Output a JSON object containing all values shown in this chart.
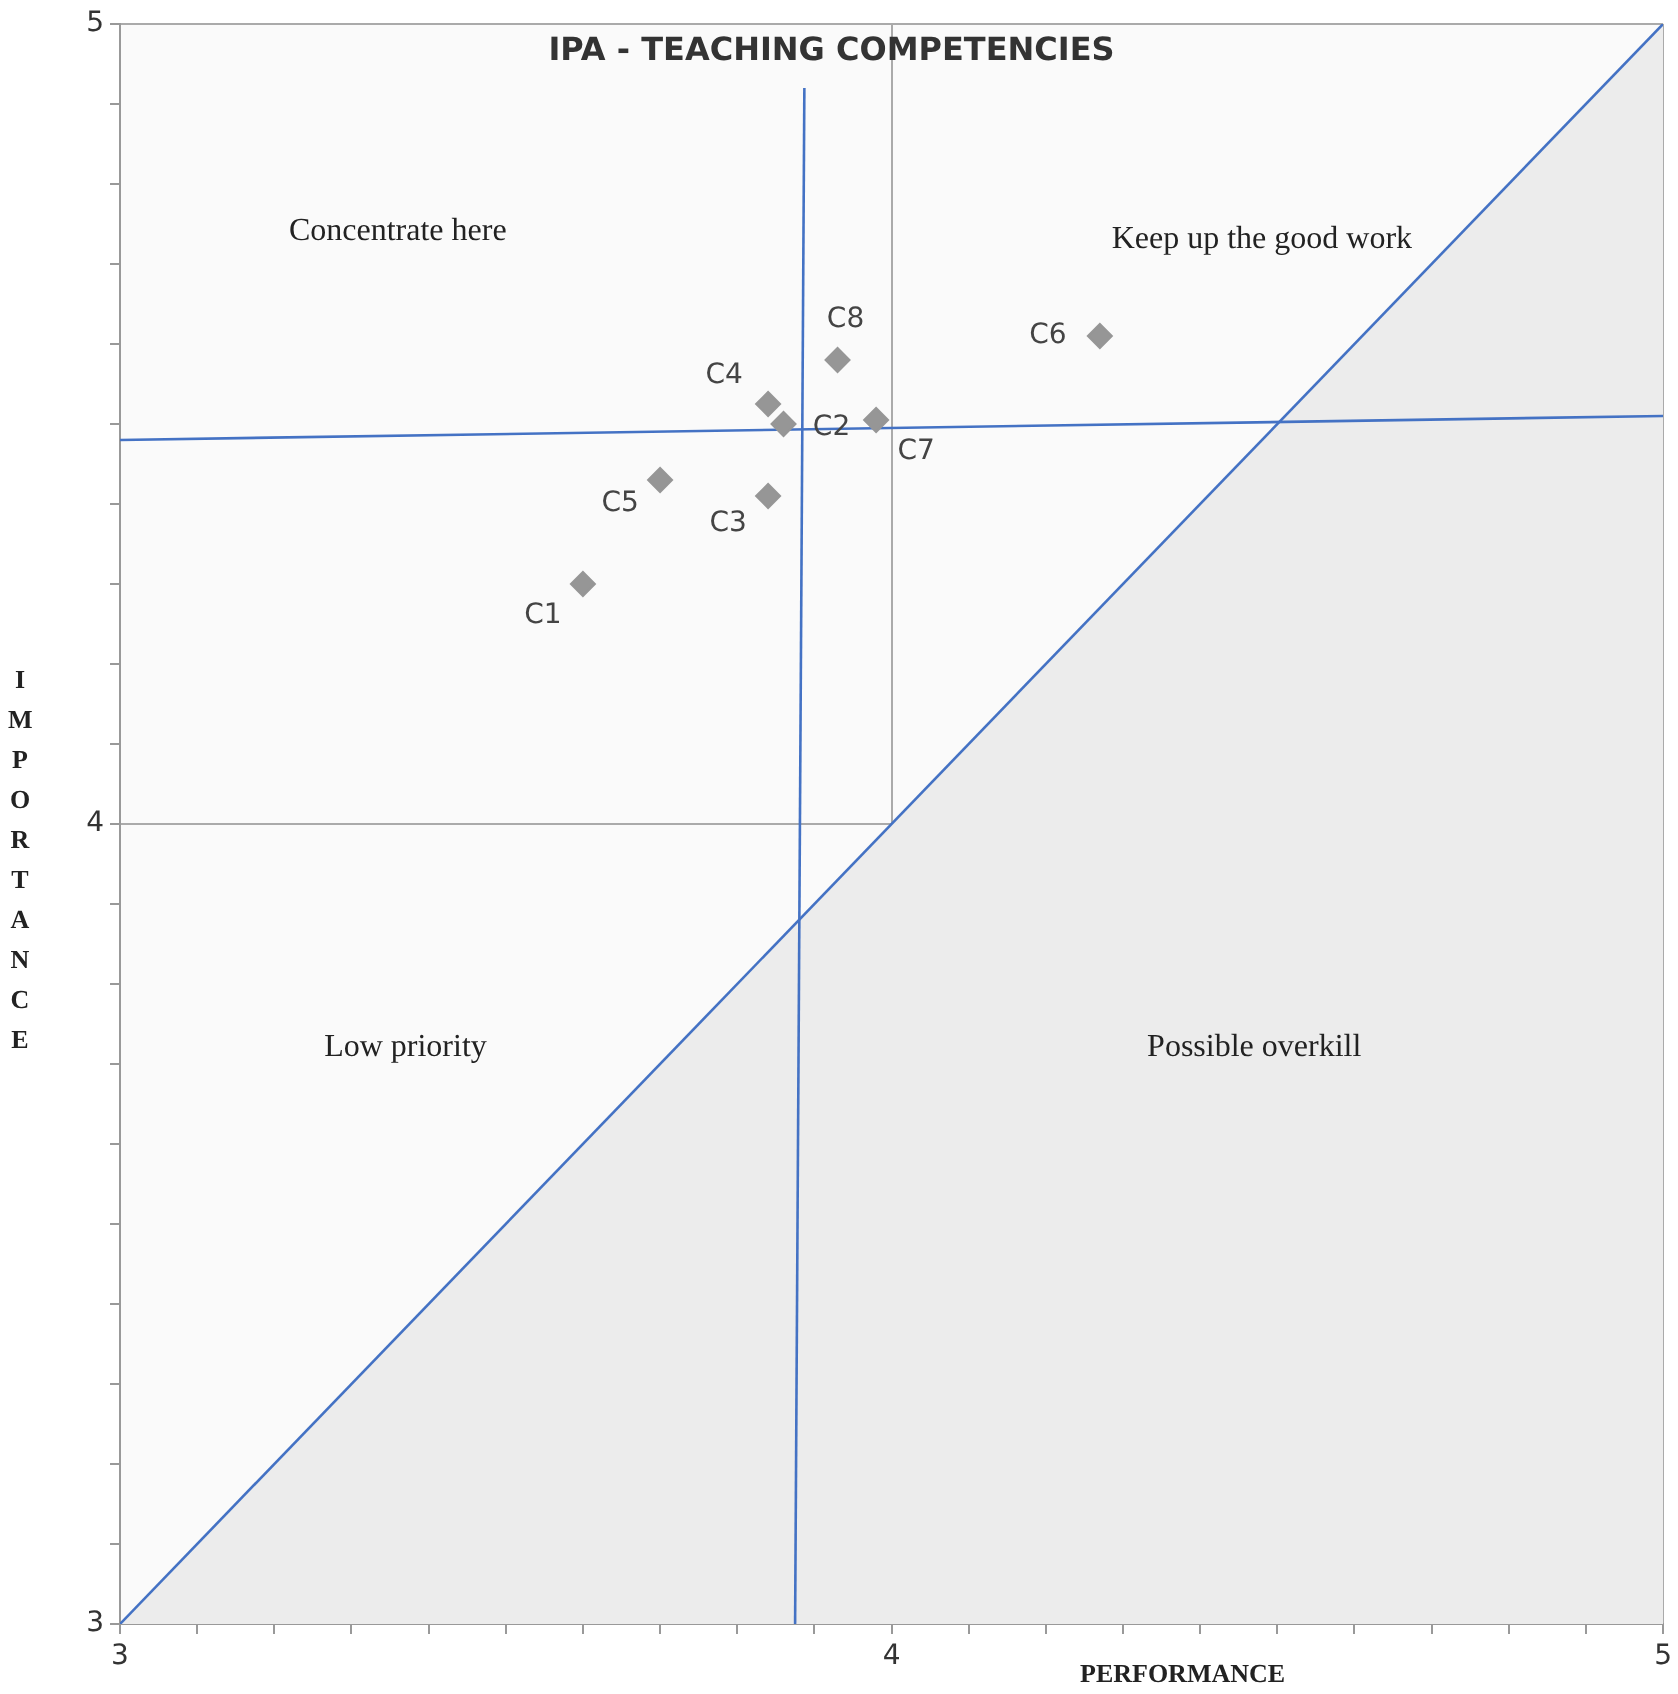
{
  "chart_data": {
    "type": "scatter",
    "title": "IPA - TEACHING COMPETENCIES",
    "xlabel": "PERFORMANCE",
    "ylabel": "IMPORTANCE",
    "xlim": [
      3,
      5
    ],
    "ylim": [
      3,
      5
    ],
    "xticks": [
      3,
      {
        "value": 3.1,
        "label": null
      },
      {
        "value": 3.2,
        "label": null
      },
      {
        "value": 3.3,
        "label": null
      },
      {
        "value": 3.4,
        "label": null
      },
      {
        "value": 3.5,
        "label": null
      },
      {
        "value": 3.6,
        "label": null
      },
      {
        "value": 3.7,
        "label": null
      },
      {
        "value": 3.8,
        "label": null
      },
      {
        "value": 3.9,
        "label": null
      },
      4,
      {
        "value": 4.1,
        "label": null
      },
      {
        "value": 4.2,
        "label": null
      },
      {
        "value": 4.3,
        "label": null
      },
      {
        "value": 4.4,
        "label": null
      },
      {
        "value": 4.5,
        "label": null
      },
      {
        "value": 4.6,
        "label": null
      },
      {
        "value": 4.7,
        "label": null
      },
      {
        "value": 4.8,
        "label": null
      },
      {
        "value": 4.9,
        "label": null
      },
      5
    ],
    "yticks": [
      3,
      {
        "value": 3.1,
        "label": null
      },
      {
        "value": 3.2,
        "label": null
      },
      {
        "value": 3.3,
        "label": null
      },
      {
        "value": 3.4,
        "label": null
      },
      {
        "value": 3.5,
        "label": null
      },
      {
        "value": 3.6,
        "label": null
      },
      {
        "value": 3.7,
        "label": null
      },
      {
        "value": 3.8,
        "label": null
      },
      {
        "value": 3.9,
        "label": null
      },
      4,
      {
        "value": 4.1,
        "label": null
      },
      {
        "value": 4.2,
        "label": null
      },
      {
        "value": 4.3,
        "label": null
      },
      {
        "value": 4.4,
        "label": null
      },
      {
        "value": 4.5,
        "label": null
      },
      {
        "value": 4.6,
        "label": null
      },
      {
        "value": 4.7,
        "label": null
      },
      {
        "value": 4.8,
        "label": null
      },
      {
        "value": 4.9,
        "label": null
      },
      5
    ],
    "grid": true,
    "legend": false,
    "series": [
      {
        "type": "area",
        "color": "#4472c4",
        "marker": "none",
        "x": [
          3,
          5
        ],
        "values": [
          3,
          5
        ]
      },
      {
        "type": "line",
        "color": "#4472c4",
        "marker": "none",
        "x": [
          3.875,
          3.887
        ],
        "values": [
          3,
          4.92
        ]
      },
      {
        "type": "line",
        "color": "#4472c4",
        "marker": "none",
        "x": [
          3,
          5
        ],
        "values": [
          4.48,
          4.51
        ]
      },
      {
        "color": "#969696",
        "marker": "diamond",
        "x": [
          3.6,
          3.86,
          3.84,
          3.84,
          3.7,
          4.27,
          3.98,
          3.93
        ],
        "values": [
          4.3,
          4.5,
          4.41,
          4.525,
          4.43,
          4.61,
          4.505,
          4.58
        ],
        "value_labels": [
          "C1",
          "C2",
          "C3",
          "C4",
          "C5",
          "C6",
          "C7",
          "C8"
        ]
      }
    ],
    "annotations": [
      "Concentrate here",
      "Keep up the good work",
      "Low priority",
      "Possible overkill"
    ]
  }
}
